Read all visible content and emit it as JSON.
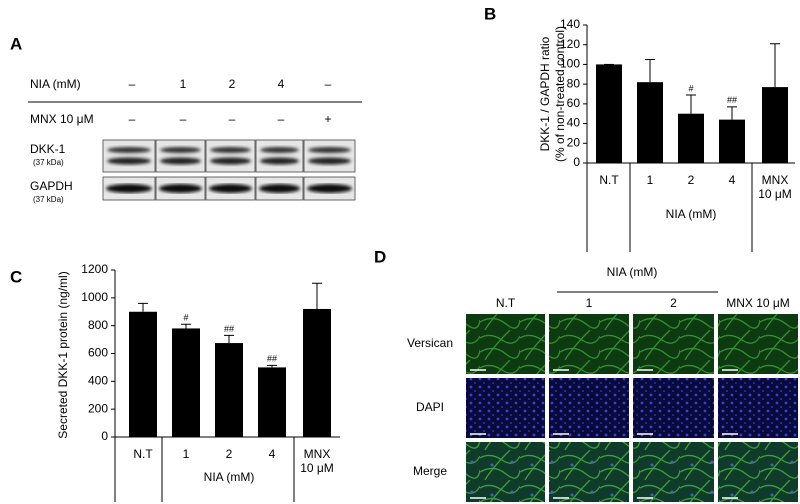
{
  "panel_a": {
    "panel": "A",
    "rows": [
      {
        "label": "NIA (mM)",
        "cells": [
          "–",
          "1",
          "2",
          "4",
          "–"
        ]
      },
      {
        "label": "MNX 10 μM",
        "cells": [
          "–",
          "–",
          "–",
          "–",
          "+"
        ]
      }
    ],
    "blots": [
      {
        "label": "DKK-1",
        "size": "(37 kDa)"
      },
      {
        "label": "GAPDH",
        "size": "(37 kDa)"
      }
    ]
  },
  "chart_data": [
    {
      "type": "bar",
      "panel": "B",
      "ylabel": [
        "DKK-1 / GAPDH ratio",
        "(% of non-treated control)"
      ],
      "categories": [
        "N.T",
        "1",
        "2",
        "4",
        "MNX 10 μM"
      ],
      "group_label": "NIA (mM)",
      "values": [
        100,
        82,
        50,
        44,
        77
      ],
      "errors": [
        0,
        23,
        19,
        13,
        44
      ],
      "markers": [
        null,
        null,
        "#",
        "##",
        null
      ],
      "color": "#000000",
      "ylim": [
        0,
        140
      ],
      "yticks": [
        0,
        20,
        40,
        60,
        80,
        100,
        120,
        140
      ]
    },
    {
      "type": "bar",
      "panel": "C",
      "ylabel": [
        "Secreted DKK-1 protein (ng/ml)"
      ],
      "categories": [
        "N.T",
        "1",
        "2",
        "4",
        "MNX 10 μM"
      ],
      "group_label": "NIA (mM)",
      "values": [
        900,
        780,
        675,
        500,
        920
      ],
      "errors": [
        60,
        30,
        55,
        15,
        185
      ],
      "markers": [
        null,
        "#",
        "##",
        "##",
        null
      ],
      "color": "#000000",
      "ylim": [
        0,
        1200
      ],
      "yticks": [
        0,
        200,
        400,
        600,
        800,
        1000,
        1200
      ]
    }
  ],
  "panel_d": {
    "panel": "D",
    "group_label": "NIA (mM)",
    "columns": [
      "N.T",
      "1",
      "2",
      "MNX 10 μM"
    ],
    "rows": [
      "Versican",
      "DAPI",
      "Merge"
    ]
  }
}
